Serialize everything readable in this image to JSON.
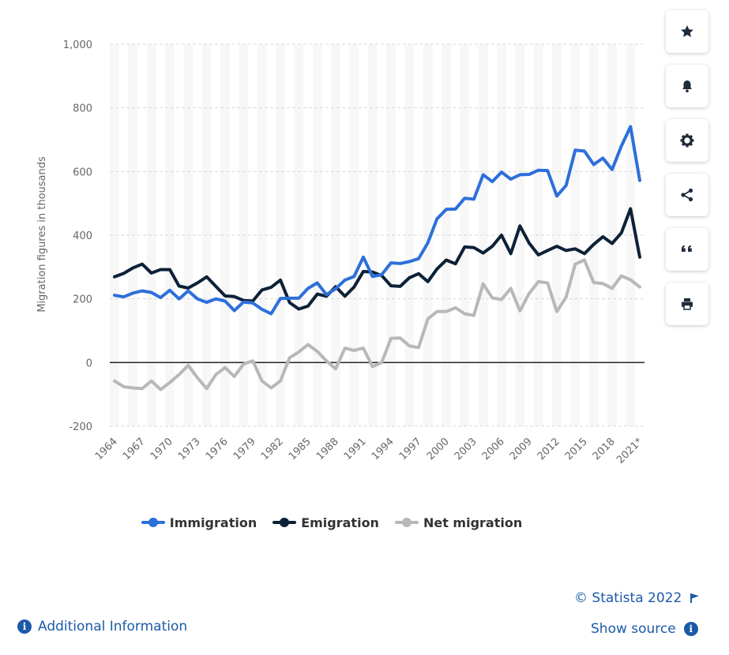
{
  "chart_data": {
    "type": "line",
    "title": "",
    "xlabel": "",
    "ylabel": "Migration figures in thousands",
    "ylim": [
      -200,
      1000
    ],
    "yticks": [
      -200,
      0,
      200,
      400,
      600,
      800,
      1000
    ],
    "ytick_labels": [
      "-200",
      "0",
      "200",
      "400",
      "600",
      "800",
      "1,000"
    ],
    "x": [
      "1964",
      "1965",
      "1966",
      "1967",
      "1968",
      "1969",
      "1970",
      "1971",
      "1972",
      "1973",
      "1974",
      "1975",
      "1976",
      "1977",
      "1978",
      "1979",
      "1980",
      "1981",
      "1982",
      "1983",
      "1984",
      "1985",
      "1986",
      "1987",
      "1988",
      "1989",
      "1990",
      "1991",
      "1992",
      "1993",
      "1994",
      "1995",
      "1996",
      "1997",
      "1998",
      "1999",
      "2000",
      "2001",
      "2002",
      "2003",
      "2004",
      "2005",
      "2006",
      "2007",
      "2008",
      "2009",
      "2010",
      "2011",
      "2012",
      "2013",
      "2014",
      "2015",
      "2016",
      "2017",
      "2018",
      "2019",
      "2020",
      "2021*"
    ],
    "xtick_labels": [
      "1964",
      "1967",
      "1970",
      "1973",
      "1976",
      "1979",
      "1982",
      "1985",
      "1988",
      "1991",
      "1994",
      "1997",
      "2000",
      "2003",
      "2006",
      "2009",
      "2012",
      "2015",
      "2018",
      "2021*"
    ],
    "xtick_indices": [
      0,
      3,
      6,
      9,
      12,
      15,
      18,
      21,
      24,
      27,
      30,
      33,
      36,
      39,
      42,
      45,
      48,
      51,
      54,
      57
    ],
    "grid": true,
    "legend_position": "bottom",
    "series": [
      {
        "name": "Immigration",
        "color": "#2d6fdb",
        "values": [
          211,
          206,
          218,
          225,
          220,
          204,
          227,
          200,
          225,
          200,
          189,
          200,
          193,
          163,
          190,
          187,
          167,
          153,
          201,
          202,
          202,
          233,
          250,
          213,
          232,
          259,
          270,
          331,
          270,
          276,
          313,
          311,
          317,
          326,
          376,
          451,
          481,
          482,
          516,
          513,
          590,
          568,
          598,
          576,
          590,
          591,
          604,
          603,
          523,
          556,
          667,
          664,
          622,
          642,
          606,
          680,
          741,
          572
        ]
      },
      {
        "name": "Emigration",
        "color": "#0d2137",
        "values": [
          269,
          280,
          297,
          309,
          281,
          292,
          292,
          240,
          234,
          250,
          269,
          239,
          209,
          207,
          195,
          193,
          228,
          236,
          259,
          188,
          168,
          177,
          215,
          208,
          238,
          208,
          237,
          286,
          284,
          273,
          241,
          239,
          266,
          279,
          254,
          294,
          322,
          310,
          363,
          361,
          344,
          365,
          400,
          342,
          429,
          375,
          338,
          352,
          365,
          352,
          357,
          342,
          371,
          395,
          374,
          407,
          483,
          331
        ]
      },
      {
        "name": "Net migration",
        "color": "#b8b8b8",
        "values": [
          -58,
          -76,
          -80,
          -82,
          -58,
          -85,
          -63,
          -38,
          -9,
          -48,
          -82,
          -38,
          -16,
          -44,
          -5,
          5,
          -58,
          -80,
          -58,
          15,
          33,
          56,
          35,
          5,
          -20,
          45,
          38,
          45,
          -13,
          0,
          76,
          77,
          52,
          47,
          137,
          160,
          160,
          172,
          153,
          148,
          247,
          203,
          198,
          233,
          162,
          217,
          254,
          250,
          160,
          205,
          309,
          322,
          251,
          248,
          233,
          272,
          260,
          237
        ]
      }
    ]
  },
  "legend": {
    "immigration": "Immigration",
    "emigration": "Emigration",
    "net_migration": "Net migration"
  },
  "toolbar": {
    "favorite_icon": "star-icon",
    "notification_icon": "bell-icon",
    "settings_icon": "gear-icon",
    "share_icon": "share-icon",
    "cite_icon": "quote-icon",
    "print_icon": "printer-icon"
  },
  "footer": {
    "copyright": "© Statista 2022",
    "additional_info": "Additional Information",
    "show_source": "Show source",
    "link_color": "#1c5aa8"
  }
}
